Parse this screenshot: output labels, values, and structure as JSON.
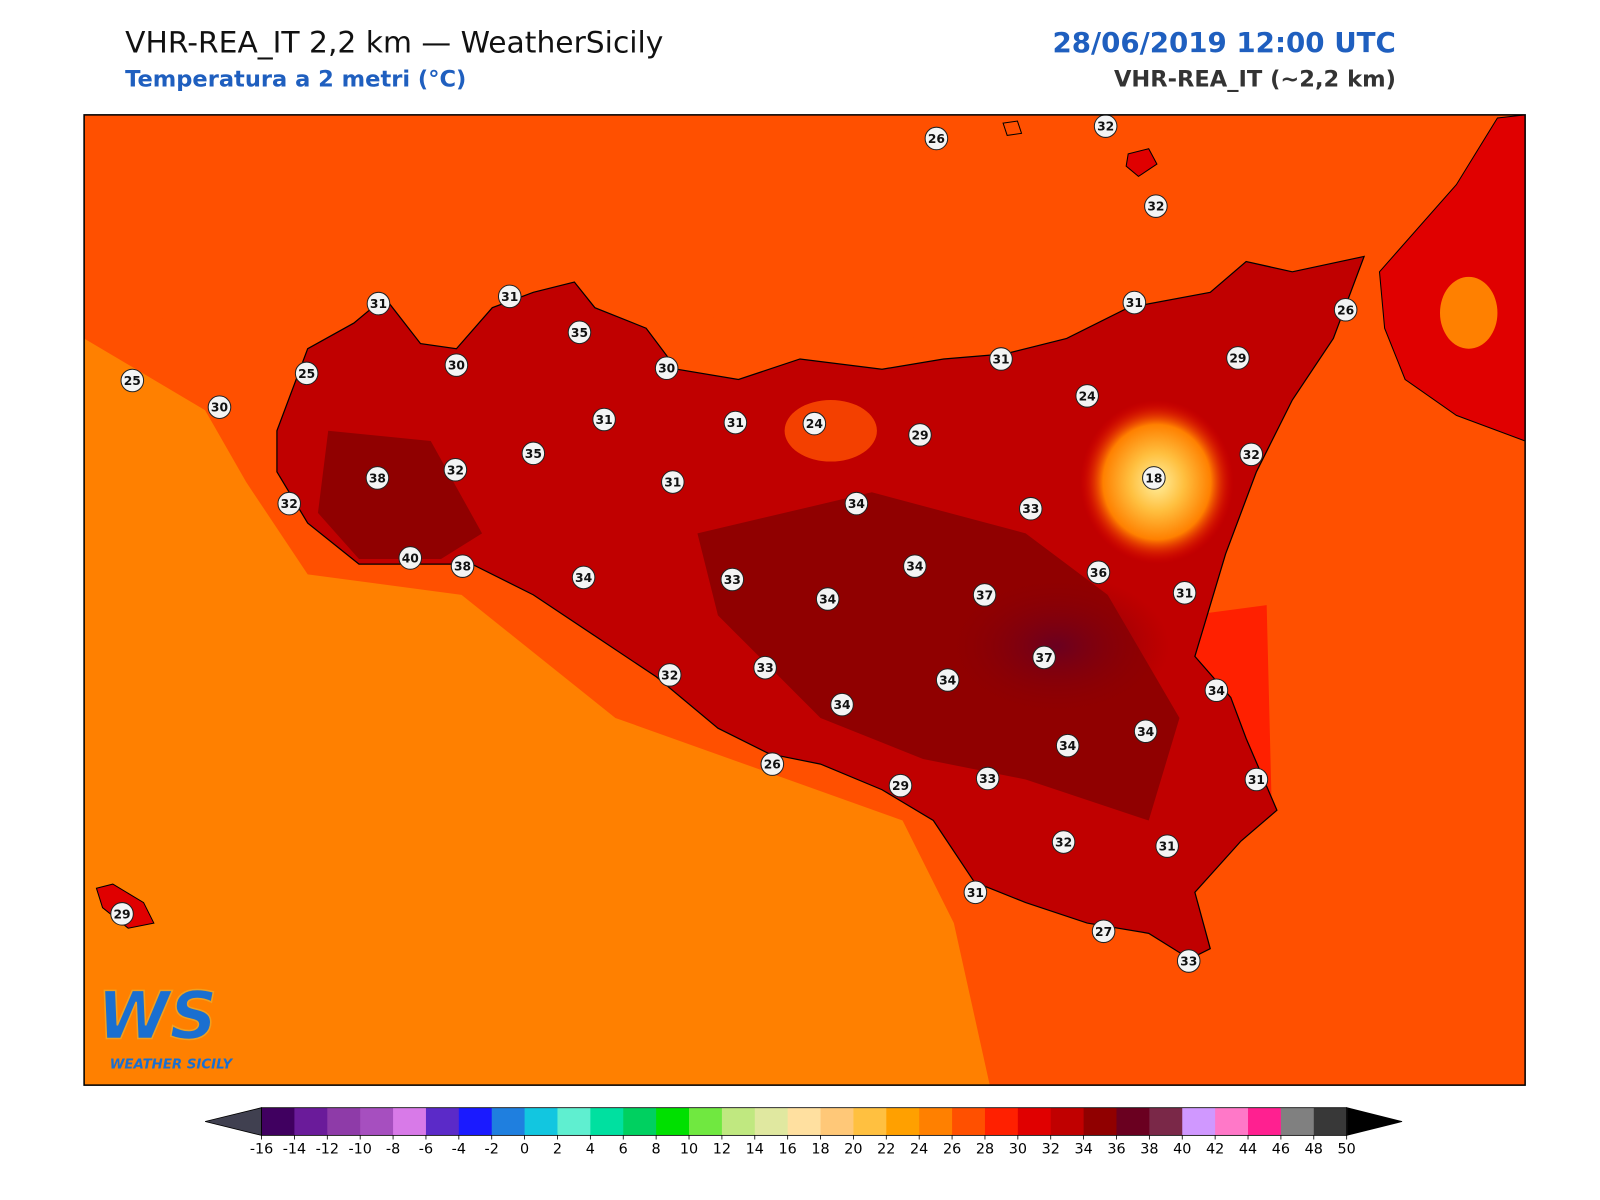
{
  "header": {
    "title": "VHR-REA_IT 2,2 km — WeatherSicily",
    "subtitle": "Temperatura a 2 metri (°C)",
    "datetime": "28/06/2019 12:00 UTC",
    "model": "VHR-REA_IT (~2,2 km)"
  },
  "map": {
    "station_values": [
      26,
      32,
      32,
      31,
      31,
      35,
      25,
      25,
      30,
      30,
      30,
      31,
      26,
      31,
      29,
      24,
      31,
      31,
      24,
      29,
      32,
      35,
      38,
      32,
      31,
      18,
      32,
      34,
      33,
      40,
      38,
      34,
      33,
      34,
      34,
      37,
      36,
      31,
      37,
      32,
      33,
      34,
      34,
      34,
      34,
      34,
      26,
      29,
      33,
      31,
      32,
      31,
      31,
      29,
      27,
      33
    ]
  },
  "colorbar": {
    "ticks": [
      -16,
      -14,
      -12,
      -10,
      -8,
      -6,
      -4,
      -2,
      0,
      2,
      4,
      6,
      8,
      10,
      12,
      14,
      16,
      18,
      20,
      22,
      24,
      26,
      28,
      30,
      32,
      34,
      36,
      38,
      40,
      42,
      44,
      46,
      48,
      50
    ],
    "colors": [
      "#400060",
      "#6a1b9a",
      "#8e3ba8",
      "#a64fbf",
      "#d87ae8",
      "#5b2ac8",
      "#1a1aff",
      "#1f7fdf",
      "#12c6e0",
      "#5fefd0",
      "#00e0a0",
      "#00d060",
      "#00e000",
      "#70e840",
      "#c0e880",
      "#e0e8a0",
      "#ffe0a0",
      "#ffc878",
      "#ffc040",
      "#ffa000",
      "#ff8000",
      "#ff5000",
      "#ff2000",
      "#e00000",
      "#c00000",
      "#900000",
      "#6a0020",
      "#7a2848",
      "#d098ff",
      "#ff78c8",
      "#ff2090",
      "#808080",
      "#383838"
    ],
    "under_color": "#404050",
    "over_color": "#000000"
  },
  "logo": {
    "mark": "WS",
    "name": "WEATHER SICILY"
  }
}
